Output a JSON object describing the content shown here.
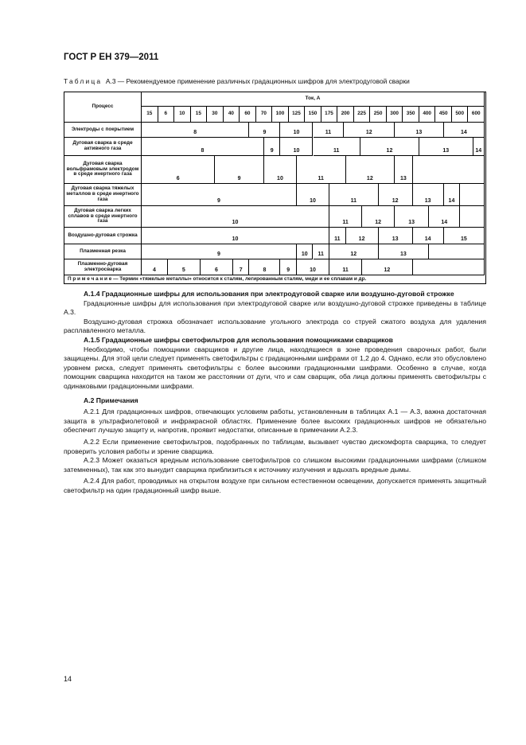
{
  "header": {
    "doc_id": "ГОСТ Р ЕН 379—2011"
  },
  "caption": {
    "label": "Таблица",
    "text": "А.3 — Рекомендуемое применение различных градационных шифров для электродуговой сварки"
  },
  "table": {
    "process_header": "Процесс",
    "current_header": "Ток, А",
    "currents": [
      "15",
      "6",
      "10",
      "15",
      "30",
      "40",
      "60",
      "70",
      "100",
      "125",
      "150",
      "175",
      "200",
      "225",
      "250",
      "300",
      "350",
      "400",
      "450",
      "500",
      "600"
    ],
    "rows": [
      {
        "process": "Электроды с покрытием",
        "shades": [
          "8",
          "9",
          "10",
          "11",
          "12",
          "13",
          "14"
        ]
      },
      {
        "process": "Дуговая сварка в среде активного газа",
        "shades": [
          "8",
          "9",
          "10",
          "11",
          "12",
          "13",
          "14"
        ]
      },
      {
        "process": "Дуговая сварка вольфрамовым электродом в среде инертного газа",
        "shades": [
          "6",
          "9",
          "10",
          "11",
          "12",
          "13",
          ""
        ]
      },
      {
        "process": "Дуговая сварка тяжелых металлов в среде инертного газа",
        "shades": [
          "9",
          "10",
          "11",
          "12",
          "13",
          "14",
          ""
        ]
      },
      {
        "process": "Дуговая сварка легких сплавов в среде инертного газа",
        "shades": [
          "10",
          "11",
          "12",
          "13",
          "14",
          ""
        ]
      },
      {
        "process": "Воздушно-дуговая строжка",
        "shades": [
          "10",
          "11",
          "12",
          "13",
          "14",
          "15"
        ]
      },
      {
        "process": "Плазменная резка",
        "shades": [
          "9",
          "10",
          "11",
          "12",
          "13",
          ""
        ]
      },
      {
        "process": "Плазменно-дуговая электросварка",
        "shades": [
          "4",
          "5",
          "6",
          "7",
          "8",
          "9",
          "10",
          "11",
          "12",
          ""
        ]
      }
    ],
    "note": "П р и м е ч а н и е — Термин «тяжелые металлы» относится к сталям, легированным сталям, меди и ее сплавам и др."
  },
  "body": {
    "a14_title": "А.1.4 Градационные шифры для использования при электродуговой сварке или воздушно-дуговой строжке",
    "a14_p1": "Градационные шифры для использования при электродуговой сварке или воздушно-дуговой строжке приведены в таблице А.3.",
    "a14_p2": "Воздушно-дуговая строжка обозначает использование угольного электрода со струей сжатого воздуха для удаления расплавленного металла.",
    "a15_title": "А.1.5 Градационные шифры светофильтров для использования помощниками сварщиков",
    "a15_p1": "Необходимо, чтобы помощники сварщиков и другие лица, находящиеся в зоне проведения сварочных работ, были защищены. Для этой цели следует применять светофильтры с градационными шифрами от 1,2 до 4. Однако, если это обусловлено уровнем риска, следует применять светофильтры с более высокими градационными шифрами. Особенно в случае, когда помощник сварщика находится на таком же расстоянии от дуги, что и сам сварщик, оба лица должны применять светофильтры с одинаковыми градационными шифрами.",
    "a2_title": "А.2 Примечания",
    "a21": "А.2.1 Для градационных шифров, отвечающих условиям работы, установленным в таблицах А.1 — А.3, важна достаточная защита в ультрафиолетовой и инфракрасной областях. Применение более высоких градационных шифров не обязательно обеспечит лучшую защиту и, напротив, проявит недостатки, описанные в примечании А.2.3.",
    "a22": "А.2.2 Если применение светофильтров, подобранных по таблицам, вызывает чувство дискомфорта сварщика, то следует проверить условия работы и зрение сварщика.",
    "a23": "А.2.3 Может оказаться вредным использование светофильтров со слишком высокими градационными шифрами (слишком затемненных), так как это вынудит сварщика приблизиться к источнику излучения и вдыхать вредные дымы.",
    "a24": "А.2.4 Для работ, проводимых на открытом воздухе при сильном естественном освещении, допускается применять защитный светофильтр на один градационный шифр выше."
  },
  "footer": {
    "page_number": "14"
  }
}
